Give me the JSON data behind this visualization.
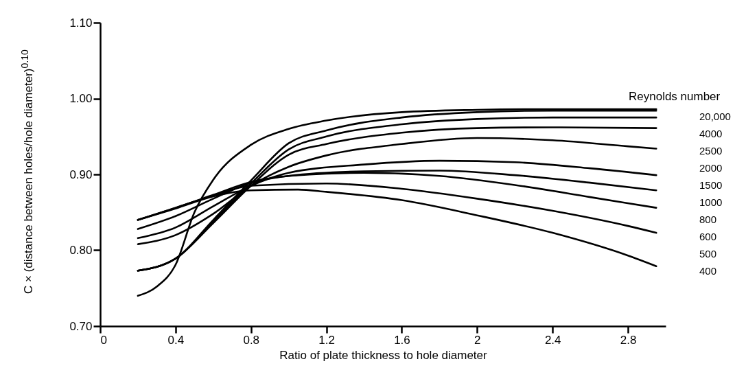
{
  "chart_data": {
    "type": "line",
    "xlabel": "Ratio of plate thickness to hole diameter",
    "ylabel": "C × (distance between holes/hole diameter)$^{0.10}$",
    "legend_title": "Reynolds number",
    "xlim": [
      0,
      3.0
    ],
    "xticks": [
      0,
      0.4,
      0.8,
      1.2,
      1.6,
      2.0,
      2.4,
      2.8
    ],
    "ylim": [
      0.7,
      1.1
    ],
    "yticks": [
      {
        "value": 0.7,
        "label": "0.70"
      },
      {
        "value": 0.8,
        "label": "0.80"
      },
      {
        "value": 0.9,
        "label": "0.90"
      },
      {
        "value": 1.0,
        "label": "1.00"
      },
      {
        "value": 1.1,
        "label": "1.10"
      }
    ],
    "grid": false,
    "legend": "right",
    "marker": "none",
    "line_style": "solid",
    "series": [
      {
        "name": "20,000",
        "color": "#000000",
        "x": [
          0.2,
          0.3,
          0.4,
          0.5,
          0.6,
          0.8,
          1.0,
          1.2,
          1.6,
          2.0,
          2.4,
          2.95
        ],
        "values": [
          0.74,
          0.752,
          0.781,
          0.85,
          0.893,
          0.939,
          0.96,
          0.971,
          0.982,
          0.985,
          0.986,
          0.986
        ]
      },
      {
        "name": "4000",
        "color": "#000000",
        "x": [
          0.2,
          0.4,
          0.6,
          0.8,
          1.0,
          1.2,
          1.6,
          2.0,
          2.4,
          2.95
        ],
        "values": [
          0.773,
          0.789,
          0.84,
          0.892,
          0.941,
          0.958,
          0.975,
          0.982,
          0.984,
          0.984
        ]
      },
      {
        "name": "2500",
        "color": "#000000",
        "x": [
          0.2,
          0.4,
          0.6,
          0.8,
          1.0,
          1.2,
          1.6,
          2.0,
          2.4,
          2.95
        ],
        "values": [
          0.773,
          0.789,
          0.838,
          0.888,
          0.933,
          0.95,
          0.966,
          0.973,
          0.975,
          0.975
        ]
      },
      {
        "name": "2000",
        "color": "#000000",
        "x": [
          0.2,
          0.4,
          0.6,
          0.8,
          1.0,
          1.2,
          1.6,
          2.0,
          2.4,
          2.95
        ],
        "values": [
          0.773,
          0.789,
          0.836,
          0.885,
          0.926,
          0.94,
          0.955,
          0.961,
          0.962,
          0.961
        ]
      },
      {
        "name": "1500",
        "color": "#000000",
        "x": [
          0.2,
          0.4,
          0.6,
          0.8,
          1.0,
          1.2,
          1.6,
          2.0,
          2.4,
          2.8,
          2.95
        ],
        "values": [
          0.808,
          0.82,
          0.848,
          0.885,
          0.91,
          0.925,
          0.94,
          0.948,
          0.945,
          0.937,
          0.934
        ]
      },
      {
        "name": "1000",
        "color": "#000000",
        "x": [
          0.2,
          0.4,
          0.6,
          0.8,
          1.0,
          1.4,
          1.8,
          2.2,
          2.6,
          2.95
        ],
        "values": [
          0.816,
          0.83,
          0.858,
          0.885,
          0.902,
          0.913,
          0.918,
          0.916,
          0.908,
          0.899
        ]
      },
      {
        "name": "800",
        "color": "#000000",
        "x": [
          0.2,
          0.4,
          0.6,
          0.8,
          1.0,
          1.4,
          1.8,
          2.2,
          2.6,
          2.95
        ],
        "values": [
          0.828,
          0.845,
          0.868,
          0.889,
          0.898,
          0.904,
          0.905,
          0.899,
          0.889,
          0.879
        ]
      },
      {
        "name": "600",
        "color": "#000000",
        "x": [
          0.2,
          0.4,
          0.6,
          0.8,
          1.0,
          1.4,
          1.8,
          2.2,
          2.6,
          2.95
        ],
        "values": [
          0.84,
          0.856,
          0.873,
          0.89,
          0.898,
          0.902,
          0.898,
          0.886,
          0.87,
          0.856
        ]
      },
      {
        "name": "500",
        "color": "#000000",
        "x": [
          0.2,
          0.4,
          0.6,
          0.8,
          1.2,
          1.6,
          2.0,
          2.4,
          2.8,
          2.95
        ],
        "values": [
          0.84,
          0.856,
          0.872,
          0.885,
          0.888,
          0.881,
          0.868,
          0.852,
          0.832,
          0.823
        ]
      },
      {
        "name": "400",
        "color": "#000000",
        "x": [
          0.2,
          0.4,
          0.6,
          0.8,
          1.05,
          1.2,
          1.6,
          2.0,
          2.4,
          2.8,
          2.95
        ],
        "values": [
          0.84,
          0.855,
          0.871,
          0.879,
          0.88,
          0.877,
          0.866,
          0.846,
          0.823,
          0.793,
          0.779
        ]
      }
    ]
  }
}
